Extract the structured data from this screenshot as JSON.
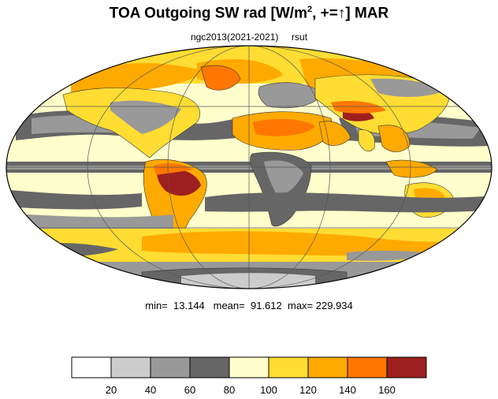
{
  "title": {
    "prefix": "TOA Outgoing SW rad [W/m",
    "sup": "2",
    "mid": ", +=",
    "arrow": "↑",
    "suffix": "] MAR"
  },
  "subtitle": {
    "experiment": "ngc2013(2021-2021)",
    "variable": "rsut"
  },
  "stats": {
    "min_label": "min=",
    "min": "13.144",
    "mean_label": "mean=",
    "mean": "91.612",
    "max_label": "max=",
    "max": "229.934"
  },
  "colorbar": {
    "colors": [
      "#ffffff",
      "#cccccc",
      "#999999",
      "#666666",
      "#ffffcc",
      "#ffdd33",
      "#ffaa00",
      "#ff7700",
      "#9e1f1f"
    ],
    "labels": [
      "20",
      "40",
      "60",
      "80",
      "100",
      "120",
      "140",
      "160"
    ]
  },
  "map": {
    "projection": "mollweide",
    "ocean_background": "#ffffcc"
  }
}
